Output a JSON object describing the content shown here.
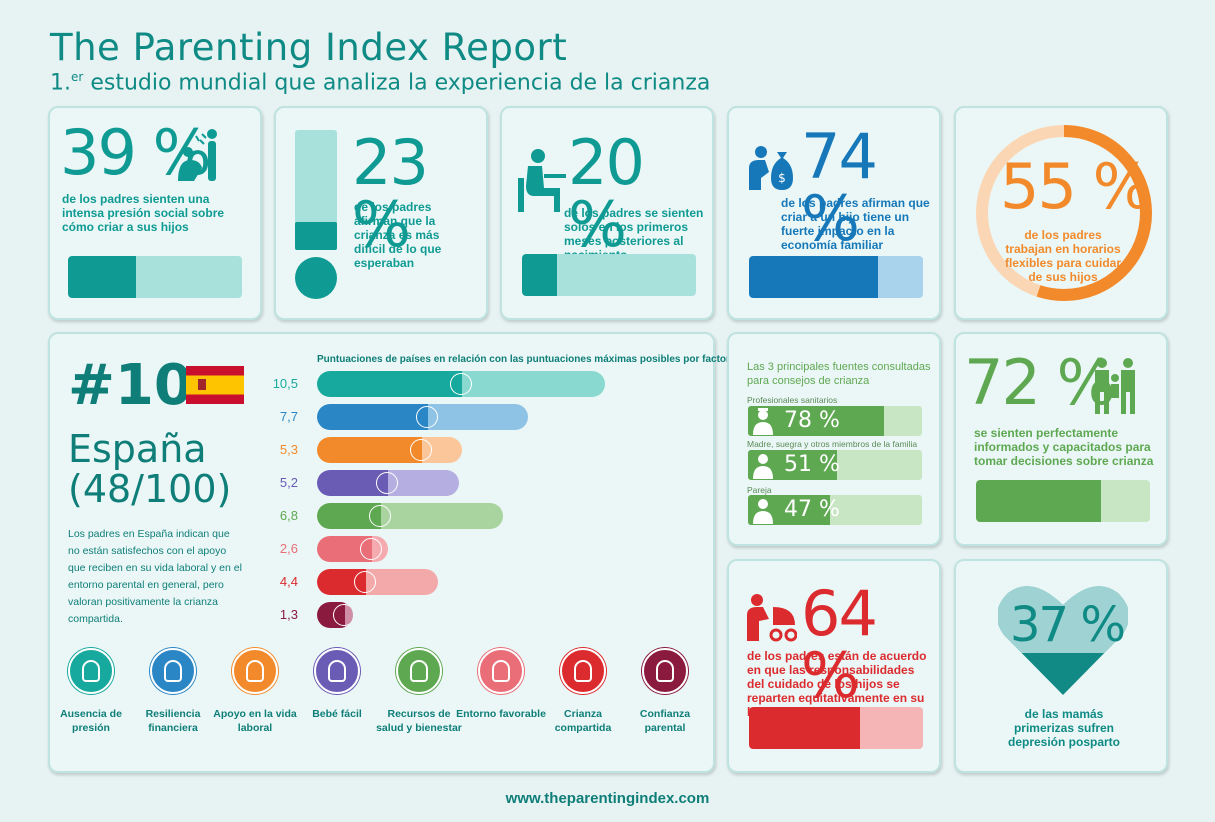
{
  "header": {
    "title": "The Parenting Index Report",
    "subtitle_prefix": "1.",
    "subtitle_sup": "er",
    "subtitle_text": " estudio mundial que analiza la experiencia de la crianza"
  },
  "stats": [
    {
      "value": "39 %",
      "text": "de los padres sienten una intensa presión social sobre cómo criar a sus hijos",
      "fraction": 0.39,
      "color": "#0f9a93",
      "track": "#a8e0dc"
    },
    {
      "value": "23 %",
      "text": "de los padres afirman que la crianza es más difícil de lo que esperaban",
      "fraction": 0.23,
      "color": "#0f9a93",
      "track": "#a8e0dc"
    },
    {
      "value": "20 %",
      "text": "de los padres se sienten solos en los primeros meses posteriores al nacimiento",
      "fraction": 0.2,
      "color": "#0f9a93",
      "track": "#a8e0dc"
    },
    {
      "value": "74 %",
      "text": "de los padres afirman que criar a un hijo tiene un fuerte impacto en la economía familiar",
      "fraction": 0.74,
      "color": "#1678b9",
      "track": "#a9d3ec"
    },
    {
      "value": "55 %",
      "text": "de los padres trabajan en horarios flexibles para cuidar de sus hijos",
      "fraction": 0.55,
      "color": "#f28a2b",
      "track": "#fbd6b4"
    }
  ],
  "country": {
    "rank": "#10",
    "name": "España",
    "score": "(48/100)",
    "description": "Los padres en España indican que no están satisfechos con el apoyo que reciben en su vida laboral y en el entorno parental en general, pero valoran positivamente la crianza compartida."
  },
  "chart_data": {
    "type": "bar",
    "title": "Puntuaciones de países en relación con las puntuaciones máximas posibles por factor",
    "categories": [
      "Ausencia de presión",
      "Resiliencia financiera",
      "Apoyo en la vida laboral",
      "Bebé fácil",
      "Recursos de salud y bienestar",
      "Entorno favorable",
      "Crianza compartida",
      "Confianza parental"
    ],
    "values": [
      "10,5",
      "7,7",
      "5,3",
      "5,2",
      "6,8",
      "2,6",
      "4,4",
      "1,3"
    ],
    "numeric_values": [
      10.5,
      7.7,
      5.3,
      5.2,
      6.8,
      2.6,
      4.4,
      1.3
    ],
    "max_values": [
      10.5,
      7.7,
      7.2,
      4.5,
      3.9,
      3.2,
      2.7,
      1.0
    ],
    "colors": [
      "#17a99e",
      "#2a86c5",
      "#f28a2b",
      "#6a5bb5",
      "#5fa852",
      "#ea6e78",
      "#dc2b2e",
      "#8a1a3e"
    ],
    "light_colors": [
      "#8ad9d1",
      "#8ec3e5",
      "#fbc79a",
      "#b5aee0",
      "#a9d49f",
      "#f5aab0",
      "#f3a9a9",
      "#cf8ea5"
    ]
  },
  "factors": [
    {
      "label": "Ausencia de presión",
      "color": "#17a99e"
    },
    {
      "label": "Resiliencia financiera",
      "color": "#2a86c5"
    },
    {
      "label": "Apoyo en la vida laboral",
      "color": "#f28a2b"
    },
    {
      "label": "Bebé fácil",
      "color": "#6a5bb5"
    },
    {
      "label": "Recursos de salud y bienestar",
      "color": "#5fa852"
    },
    {
      "label": "Entorno favorable",
      "color": "#ea6e78"
    },
    {
      "label": "Crianza compartida",
      "color": "#dc2b2e"
    },
    {
      "label": "Confianza parental",
      "color": "#8a1a3e"
    }
  ],
  "sources": {
    "title": "Las 3 principales fuentes consultadas para consejos de crianza",
    "items": [
      {
        "label": "Profesionales sanitarios",
        "value": "78 %",
        "fraction": 0.78
      },
      {
        "label": "Madre, suegra y otros miembros de la familia",
        "value": "51 %",
        "fraction": 0.51
      },
      {
        "label": "Pareja",
        "value": "47 %",
        "fraction": 0.47
      }
    ]
  },
  "informed": {
    "value": "72 %",
    "text": "se sienten perfectamente informados y capacitados para tomar decisiones sobre crianza",
    "fraction": 0.72,
    "color": "#5fa852"
  },
  "shared": {
    "value": "64 %",
    "text": "de los padres están de acuerdo en que las responsabilidades del cuidado de los hijos se reparten equitativamente en su hogar",
    "fraction": 0.64,
    "color": "#dc2b2e"
  },
  "mothers": {
    "value": "37 %",
    "text": "de las mamás primerizas sufren depresión posparto",
    "fraction": 0.37,
    "color": "#118a86"
  },
  "footer": {
    "url": "www.theparentingindex.com"
  }
}
